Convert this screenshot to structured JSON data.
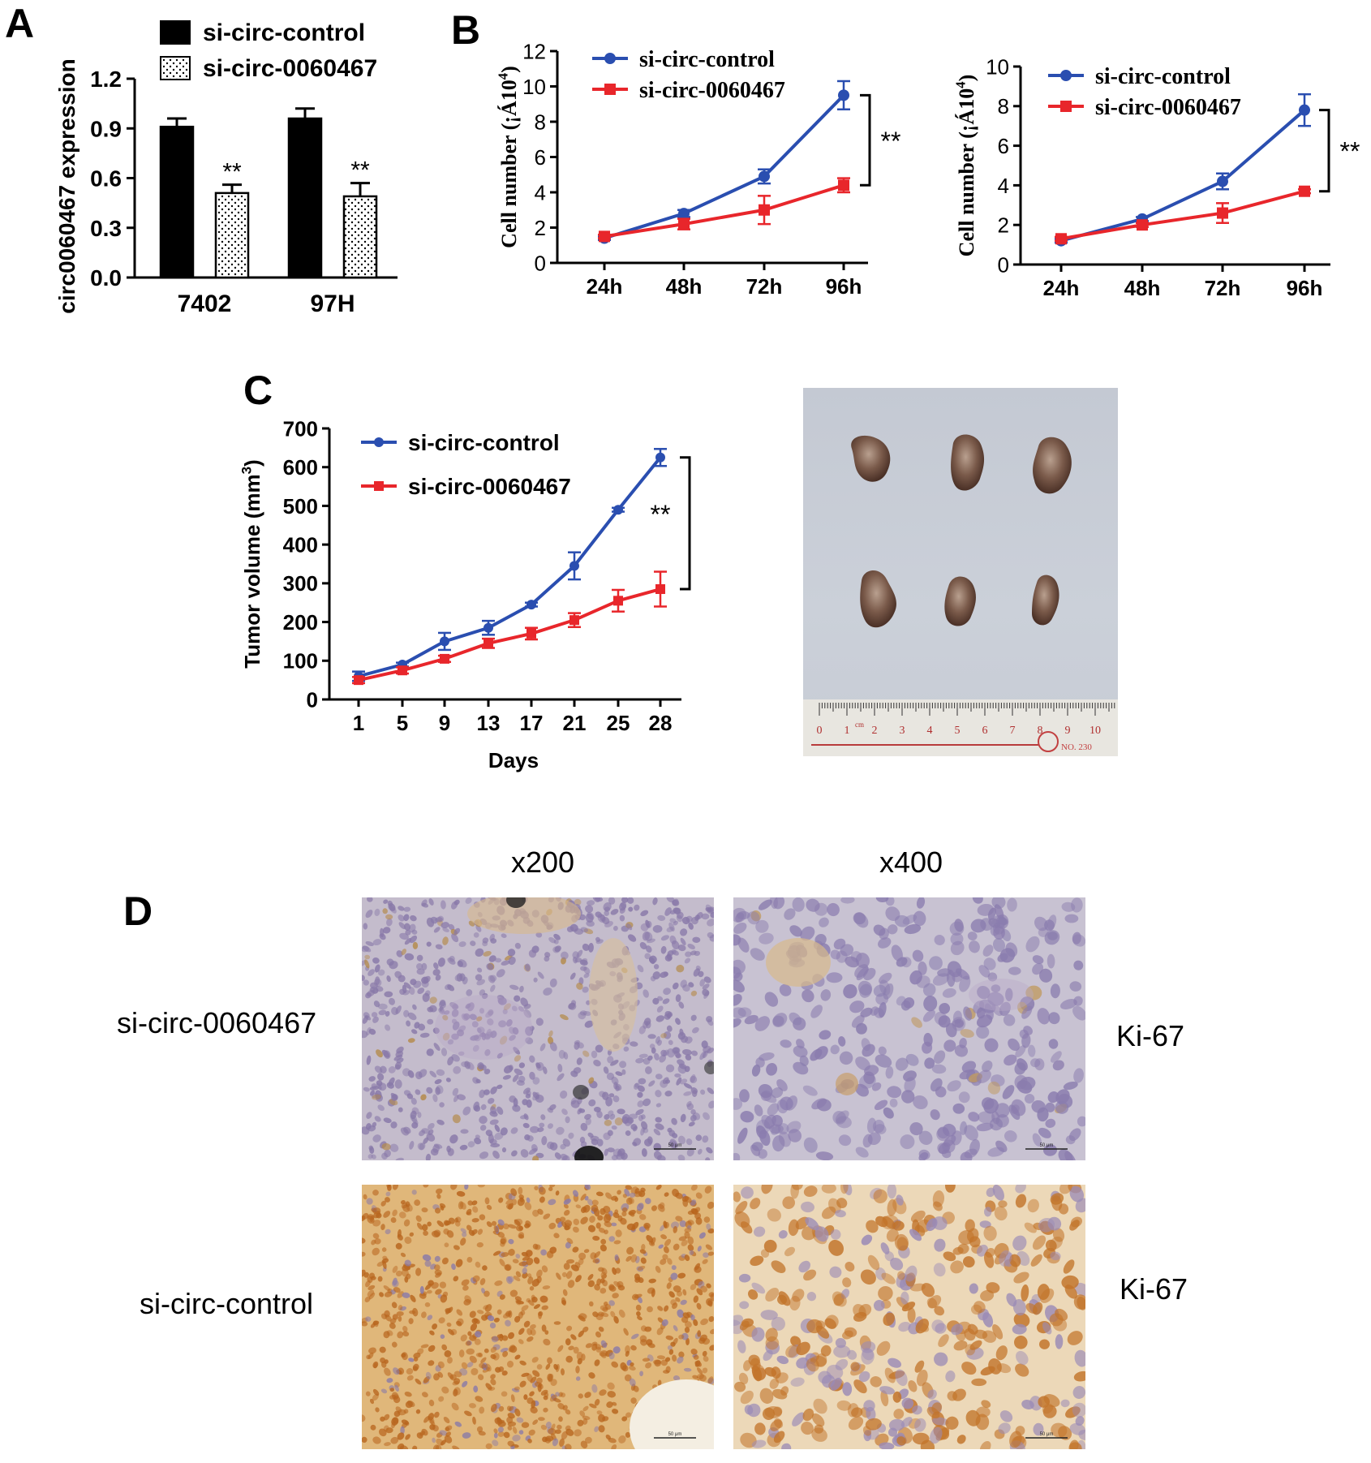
{
  "panels": {
    "a": "A",
    "b": "B",
    "c": "C",
    "d": "D"
  },
  "colors": {
    "control": "#2a4eb0",
    "knockdown": "#e8262b",
    "bar_control": "#000000"
  },
  "chart_data": [
    {
      "id": "A",
      "type": "bar",
      "ylabel": "circ0060467 expression",
      "categories": [
        "7402",
        "97H"
      ],
      "ylim": [
        0,
        1.2
      ],
      "yticks": [
        "0.0",
        "0.3",
        "0.6",
        "0.9",
        "1.2"
      ],
      "series": [
        {
          "name": "si-circ-control",
          "values": [
            0.91,
            0.96
          ],
          "errors": [
            0.05,
            0.06
          ]
        },
        {
          "name": "si-circ-0060467",
          "values": [
            0.51,
            0.49
          ],
          "errors": [
            0.05,
            0.08
          ]
        }
      ],
      "annotations": [
        "**",
        "**"
      ],
      "legend": "top"
    },
    {
      "id": "B1",
      "type": "line",
      "ylabel": "Cell number (¡Á10",
      "ylabel_sup": "4",
      "ylabel_end": ")",
      "x": [
        "24h",
        "48h",
        "72h",
        "96h"
      ],
      "ylim": [
        0,
        12
      ],
      "yticks": [
        "0",
        "2",
        "4",
        "6",
        "8",
        "10",
        "12"
      ],
      "series": [
        {
          "name": "si-circ-control",
          "values": [
            1.4,
            2.8,
            4.9,
            9.5
          ],
          "errors": [
            0.1,
            0.2,
            0.4,
            0.8
          ]
        },
        {
          "name": "si-circ-0060467",
          "values": [
            1.5,
            2.2,
            3.0,
            4.4
          ],
          "errors": [
            0.1,
            0.3,
            0.8,
            0.4
          ]
        }
      ],
      "annotations": [
        "**"
      ],
      "legend": "top-left"
    },
    {
      "id": "B2",
      "type": "line",
      "ylabel": "Cell number (¡Á10",
      "ylabel_sup": "4",
      "ylabel_end": ")",
      "x": [
        "24h",
        "48h",
        "72h",
        "96h"
      ],
      "ylim": [
        0,
        10
      ],
      "yticks": [
        "0",
        "2",
        "4",
        "6",
        "8",
        "10"
      ],
      "series": [
        {
          "name": "si-circ-control",
          "values": [
            1.2,
            2.3,
            4.2,
            7.8
          ],
          "errors": [
            0.1,
            0.1,
            0.4,
            0.8
          ]
        },
        {
          "name": "si-circ-0060467",
          "values": [
            1.3,
            2.0,
            2.6,
            3.7
          ],
          "errors": [
            0.1,
            0.1,
            0.5,
            0.1
          ]
        }
      ],
      "annotations": [
        "**"
      ],
      "legend": "top-left"
    },
    {
      "id": "C",
      "type": "line",
      "ylabel": "Tumor  volume (mm",
      "ylabel_sup": "3",
      "ylabel_end": ")",
      "xlabel": "Days",
      "x": [
        "1",
        "5",
        "9",
        "13",
        "17",
        "21",
        "25",
        "28"
      ],
      "ylim": [
        0,
        700
      ],
      "yticks": [
        "0",
        "100",
        "200",
        "300",
        "400",
        "500",
        "600",
        "700"
      ],
      "series": [
        {
          "name": "si-circ-control",
          "values": [
            60,
            90,
            150,
            185,
            245,
            345,
            490,
            625
          ],
          "errors": [
            12,
            5,
            22,
            18,
            5,
            35,
            5,
            22
          ]
        },
        {
          "name": "si-circ-0060467",
          "values": [
            50,
            75,
            105,
            145,
            170,
            205,
            255,
            285
          ],
          "errors": [
            8,
            8,
            8,
            12,
            15,
            18,
            28,
            45
          ]
        }
      ],
      "annotations": [
        "**"
      ],
      "legend": "top-left"
    }
  ],
  "photo_c": {
    "ruler_ticks": [
      "0",
      "1",
      "2",
      "3",
      "4",
      "5",
      "6",
      "7",
      "8",
      "9",
      "10"
    ],
    "ruler_cm": "cm",
    "ruler_no": "NO. 230"
  },
  "panel_d": {
    "col_headers": [
      "x200",
      "x400"
    ],
    "row_labels": [
      "si-circ-0060467",
      "si-circ-control"
    ],
    "stain_labels": [
      "Ki-67",
      "Ki-67"
    ],
    "scale_bar": "50 μm"
  }
}
